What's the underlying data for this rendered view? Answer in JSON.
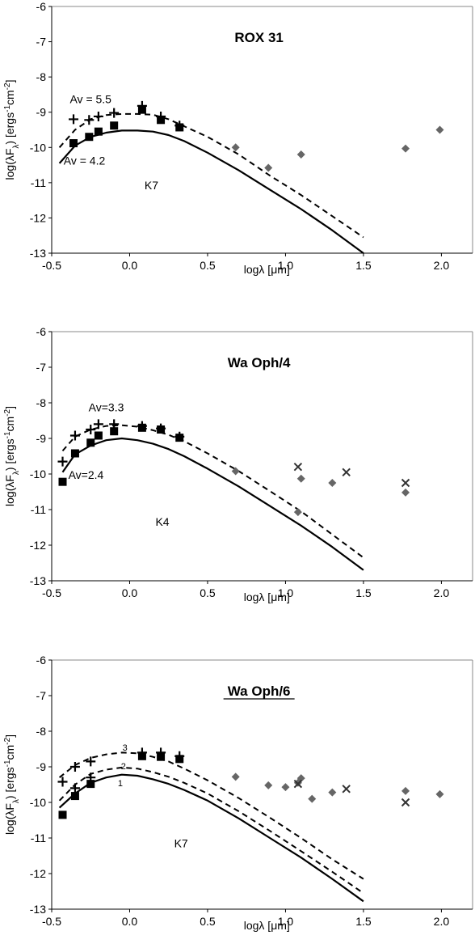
{
  "chart_data": [
    {
      "type": "scatter",
      "title": "ROX 31",
      "title_underlined": false,
      "ylabel_parts": [
        "log(λF",
        "λ",
        ") [ergs",
        "-1",
        "cm",
        "-2",
        "]"
      ],
      "xlabel_parts": [
        "logλ [μm]"
      ],
      "xlim": [
        -0.5,
        2.2
      ],
      "ylim": [
        -13,
        -6
      ],
      "x_ticks": [
        -0.5,
        0.0,
        0.5,
        1.0,
        1.5,
        2.0
      ],
      "x_tick_labels": [
        "-0.5",
        "0.0",
        "0.5",
        "1.0",
        "1.5",
        "2.0"
      ],
      "y_ticks": [
        -6,
        -7,
        -8,
        -9,
        -10,
        -11,
        -12,
        -13
      ],
      "y_tick_labels": [
        "-6",
        "-7",
        "-8",
        "-9",
        "-10",
        "-11",
        "-12",
        "-13"
      ],
      "grid": false,
      "annotations": [
        {
          "text": "Av = 5.5",
          "x": -0.25,
          "y": -8.63
        },
        {
          "text": "Av = 4.2",
          "x": -0.29,
          "y": -10.37
        },
        {
          "text": "K7",
          "x": 0.14,
          "y": -11.07
        }
      ],
      "series": [
        {
          "style": "solid-line",
          "x": [
            -0.45,
            -0.35,
            -0.25,
            -0.15,
            -0.05,
            0.05,
            0.15,
            0.25,
            0.35,
            0.5,
            0.7,
            0.9,
            1.1,
            1.3,
            1.5
          ],
          "y": [
            -10.45,
            -9.95,
            -9.7,
            -9.58,
            -9.52,
            -9.52,
            -9.55,
            -9.65,
            -9.82,
            -10.15,
            -10.65,
            -11.2,
            -11.75,
            -12.35,
            -13.0
          ]
        },
        {
          "style": "dashed-line",
          "x": [
            -0.45,
            -0.35,
            -0.25,
            -0.15,
            -0.05,
            0.05,
            0.15,
            0.25,
            0.35,
            0.5,
            0.7,
            0.9,
            1.1,
            1.3,
            1.5
          ],
          "y": [
            -10.0,
            -9.5,
            -9.2,
            -9.08,
            -9.05,
            -9.05,
            -9.07,
            -9.2,
            -9.4,
            -9.7,
            -10.2,
            -10.8,
            -11.35,
            -11.95,
            -12.55
          ]
        },
        {
          "style": "plus",
          "x": [
            -0.36,
            -0.26,
            -0.2,
            -0.1,
            0.08,
            0.2,
            0.32
          ],
          "y": [
            -9.2,
            -9.22,
            -9.12,
            -9.02,
            -8.82,
            -9.12,
            -9.38
          ]
        },
        {
          "style": "square",
          "x": [
            -0.36,
            -0.26,
            -0.2,
            -0.1,
            0.08,
            0.2,
            0.32
          ],
          "y": [
            -9.88,
            -9.7,
            -9.55,
            -9.38,
            -8.93,
            -9.22,
            -9.43
          ]
        },
        {
          "style": "diamond",
          "x": [
            0.68,
            0.89,
            1.1,
            1.77,
            1.99
          ],
          "y": [
            -10.0,
            -10.58,
            -10.2,
            -10.03,
            -9.5
          ]
        },
        {
          "style": "cross",
          "x": [],
          "y": []
        }
      ]
    },
    {
      "type": "scatter",
      "title": "Wa Oph/4",
      "title_underlined": false,
      "ylabel_parts": [
        "log(λF",
        "λ",
        ") [ergs",
        "-1",
        "cm",
        "-2",
        "]"
      ],
      "xlabel_parts": [
        "logλ [μm]"
      ],
      "xlim": [
        -0.5,
        2.2
      ],
      "ylim": [
        -13,
        -6
      ],
      "x_ticks": [
        -0.5,
        0.0,
        0.5,
        1.0,
        1.5,
        2.0
      ],
      "x_tick_labels": [
        "-0.5",
        "0.0",
        "0.5",
        "1.0",
        "1.5",
        "2.0"
      ],
      "y_ticks": [
        -6,
        -7,
        -8,
        -9,
        -10,
        -11,
        -12,
        -13
      ],
      "y_tick_labels": [
        "-6",
        "-7",
        "-8",
        "-9",
        "-10",
        "-11",
        "-12",
        "-13"
      ],
      "grid": false,
      "annotations": [
        {
          "text": "Av=3.3",
          "x": -0.15,
          "y": -8.12
        },
        {
          "text": "Av=2.4",
          "x": -0.28,
          "y": -10.02
        },
        {
          "text": "K4",
          "x": 0.21,
          "y": -11.34
        }
      ],
      "series": [
        {
          "style": "solid-line",
          "x": [
            -0.43,
            -0.35,
            -0.25,
            -0.15,
            -0.05,
            0.05,
            0.15,
            0.25,
            0.35,
            0.5,
            0.7,
            0.9,
            1.1,
            1.3,
            1.5
          ],
          "y": [
            -9.95,
            -9.45,
            -9.2,
            -9.05,
            -9.0,
            -9.05,
            -9.15,
            -9.3,
            -9.5,
            -9.85,
            -10.35,
            -10.9,
            -11.45,
            -12.05,
            -12.7
          ]
        },
        {
          "style": "dashed-line",
          "x": [
            -0.43,
            -0.35,
            -0.25,
            -0.15,
            -0.05,
            0.05,
            0.15,
            0.25,
            0.35,
            0.5,
            0.7,
            0.9,
            1.1,
            1.3,
            1.5
          ],
          "y": [
            -9.35,
            -8.95,
            -8.75,
            -8.65,
            -8.63,
            -8.67,
            -8.77,
            -8.9,
            -9.08,
            -9.42,
            -9.92,
            -10.48,
            -11.05,
            -11.7,
            -12.35
          ]
        },
        {
          "style": "plus",
          "x": [
            -0.43,
            -0.35,
            -0.25,
            -0.2,
            -0.1,
            0.08,
            0.2,
            0.32
          ],
          "y": [
            -9.65,
            -8.92,
            -8.75,
            -8.6,
            -8.6,
            -8.65,
            -8.72,
            -8.95
          ]
        },
        {
          "style": "square",
          "x": [
            -0.43,
            -0.35,
            -0.25,
            -0.2,
            -0.1,
            0.08,
            0.2,
            0.32
          ],
          "y": [
            -10.22,
            -9.42,
            -9.12,
            -8.92,
            -8.8,
            -8.7,
            -8.75,
            -8.98
          ]
        },
        {
          "style": "diamond",
          "x": [
            0.68,
            1.08,
            1.1,
            1.3,
            1.77
          ],
          "y": [
            -9.92,
            -11.07,
            -10.13,
            -10.25,
            -10.52
          ]
        },
        {
          "style": "cross",
          "x": [
            1.08,
            1.39,
            1.77
          ],
          "y": [
            -9.8,
            -9.95,
            -10.25
          ]
        }
      ]
    },
    {
      "type": "scatter",
      "title": "Wa Oph/6",
      "title_underlined": true,
      "ylabel_parts": [
        "log(λF",
        "λ",
        ") [ergs",
        "-1",
        "cm",
        "-2",
        "]"
      ],
      "xlabel_parts": [
        "logλ [μm]"
      ],
      "xlim": [
        -0.5,
        2.2
      ],
      "ylim": [
        -13,
        -6
      ],
      "x_ticks": [
        -0.5,
        0.0,
        0.5,
        1.0,
        1.5,
        2.0
      ],
      "x_tick_labels": [
        "-0.5",
        "0.0",
        "0.5",
        "1.0",
        "1.5",
        "2.0"
      ],
      "y_ticks": [
        -6,
        -7,
        -8,
        -9,
        -10,
        -11,
        -12,
        -13
      ],
      "y_tick_labels": [
        "-6",
        "-7",
        "-8",
        "-9",
        "-10",
        "-11",
        "-12",
        "-13"
      ],
      "grid": false,
      "annotations": [
        {
          "text": "3",
          "x": -0.03,
          "y": -8.43
        },
        {
          "text": "2",
          "x": -0.04,
          "y": -8.95
        },
        {
          "text": "1",
          "x": -0.06,
          "y": -9.43
        },
        {
          "text": "K7",
          "x": 0.33,
          "y": -11.15
        }
      ],
      "series": [
        {
          "style": "solid-line",
          "x": [
            -0.45,
            -0.35,
            -0.25,
            -0.15,
            -0.05,
            0.05,
            0.15,
            0.25,
            0.35,
            0.5,
            0.7,
            0.9,
            1.1,
            1.3,
            1.5
          ],
          "y": [
            -10.15,
            -9.75,
            -9.45,
            -9.3,
            -9.22,
            -9.25,
            -9.35,
            -9.48,
            -9.65,
            -9.95,
            -10.45,
            -11.0,
            -11.55,
            -12.15,
            -12.78
          ]
        },
        {
          "style": "dashed-line",
          "x": [
            -0.45,
            -0.35,
            -0.25,
            -0.15,
            -0.05,
            0.05,
            0.15,
            0.25,
            0.35,
            0.5,
            0.7,
            0.9,
            1.1,
            1.3,
            1.5
          ],
          "y": [
            -9.95,
            -9.5,
            -9.2,
            -9.08,
            -9.02,
            -9.05,
            -9.15,
            -9.28,
            -9.45,
            -9.75,
            -10.25,
            -10.8,
            -11.37,
            -11.95,
            -12.55
          ]
        },
        {
          "style": "dashed-line",
          "x": [
            -0.45,
            -0.35,
            -0.25,
            -0.15,
            -0.05,
            0.05,
            0.15,
            0.25,
            0.35,
            0.5,
            0.7,
            0.9,
            1.1,
            1.3,
            1.5
          ],
          "y": [
            -9.3,
            -8.95,
            -8.75,
            -8.65,
            -8.6,
            -8.62,
            -8.72,
            -8.85,
            -9.05,
            -9.38,
            -9.88,
            -10.43,
            -11.0,
            -11.6,
            -12.15
          ]
        },
        {
          "style": "plus",
          "x": [
            -0.43,
            -0.35,
            -0.35,
            -0.25,
            -0.25,
            0.08,
            0.2,
            0.32
          ],
          "y": [
            -9.42,
            -9.0,
            -9.6,
            -8.85,
            -9.3,
            -8.6,
            -8.6,
            -8.7
          ]
        },
        {
          "style": "square",
          "x": [
            -0.43,
            -0.35,
            -0.25,
            0.08,
            0.2,
            0.32
          ],
          "y": [
            -10.35,
            -9.82,
            -9.48,
            -8.7,
            -8.72,
            -8.78
          ]
        },
        {
          "style": "diamond",
          "x": [
            0.68,
            0.89,
            1.0,
            1.08,
            1.1,
            1.17,
            1.3,
            1.77,
            1.99
          ],
          "y": [
            -9.28,
            -9.52,
            -9.57,
            -9.45,
            -9.32,
            -9.9,
            -9.72,
            -9.68,
            -9.77
          ]
        },
        {
          "style": "cross",
          "x": [
            1.08,
            1.39,
            1.77
          ],
          "y": [
            -9.48,
            -9.62,
            -10.0
          ]
        }
      ]
    }
  ],
  "colors": {
    "axis": "#000000",
    "frame": "#888888",
    "line": "#000000",
    "diamond": "#666666"
  }
}
